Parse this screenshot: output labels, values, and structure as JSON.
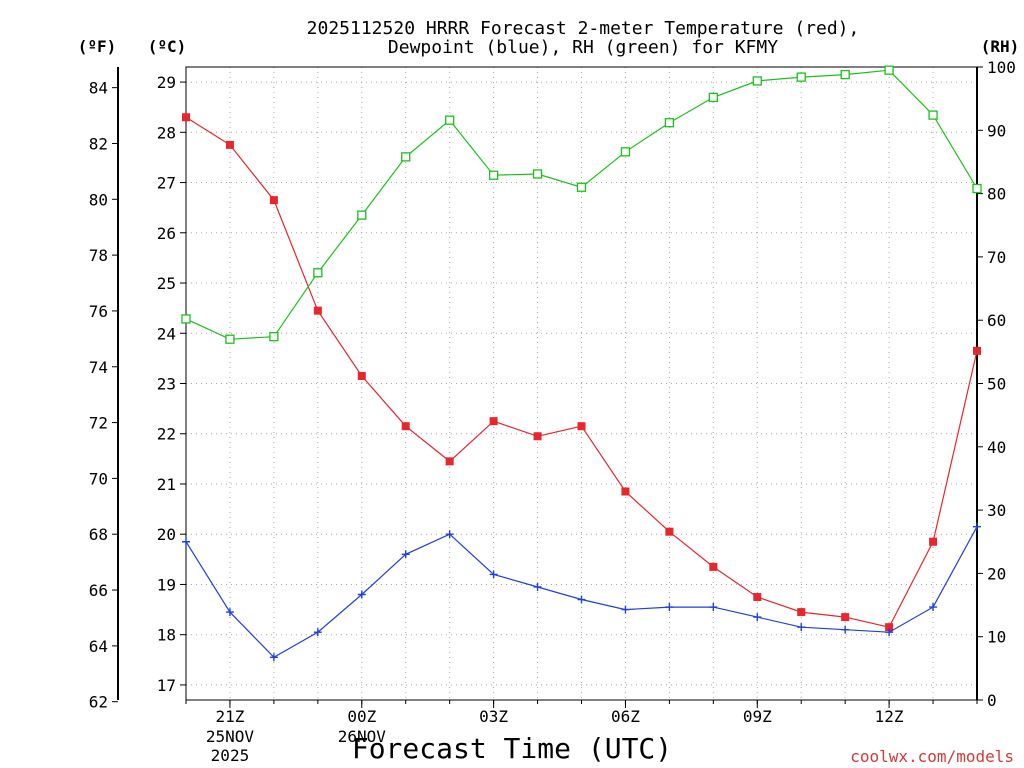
{
  "chart_data": {
    "type": "line",
    "title": [
      "2025112520 HRRR Forecast 2-meter Temperature (red),",
      "Dewpoint (blue), RH (green) for KFMY"
    ],
    "xlabel": "Forecast Time (UTC)",
    "credit": "coolwx.com/models",
    "units": {
      "left_outer": "(ºF)",
      "left_inner": "(ºC)",
      "right": "(RH)"
    },
    "x_hours": [
      20,
      21,
      22,
      23,
      24,
      25,
      26,
      27,
      28,
      29,
      30,
      31,
      32,
      33,
      34,
      35,
      36,
      37,
      38
    ],
    "x_ticks": [
      {
        "hour": 21,
        "label": "21Z"
      },
      {
        "hour": 24,
        "label": "00Z"
      },
      {
        "hour": 27,
        "label": "03Z"
      },
      {
        "hour": 30,
        "label": "06Z"
      },
      {
        "hour": 33,
        "label": "09Z"
      },
      {
        "hour": 36,
        "label": "12Z"
      }
    ],
    "date_labels": [
      {
        "hour": 21,
        "lines": [
          "25NOV",
          "2025"
        ]
      },
      {
        "hour": 24,
        "lines": [
          "26NOV"
        ]
      }
    ],
    "celsius_axis": {
      "min": 16.7,
      "max": 29.3,
      "ticks": [
        17,
        18,
        19,
        20,
        21,
        22,
        23,
        24,
        25,
        26,
        27,
        28,
        29
      ]
    },
    "fahrenheit_ticks": [
      62,
      64,
      66,
      68,
      70,
      72,
      74,
      76,
      78,
      80,
      82,
      84
    ],
    "rh_axis": {
      "min": 0,
      "max": 100,
      "ticks": [
        0,
        10,
        20,
        30,
        40,
        50,
        60,
        70,
        80,
        90,
        100
      ]
    },
    "series": [
      {
        "name": "Temperature",
        "color": "#e8262b",
        "marker": "filled-square",
        "axis": "C",
        "values": [
          28.3,
          27.75,
          26.65,
          24.45,
          23.15,
          22.15,
          21.45,
          22.25,
          21.95,
          22.15,
          20.85,
          20.05,
          19.35,
          18.75,
          18.45,
          18.35,
          18.15,
          19.85,
          23.65
        ]
      },
      {
        "name": "Dewpoint",
        "color": "#1f3fe0",
        "marker": "plus",
        "axis": "C",
        "values": [
          19.85,
          18.45,
          17.55,
          18.05,
          18.8,
          19.6,
          20.0,
          19.2,
          18.95,
          18.7,
          18.5,
          18.55,
          18.55,
          18.35,
          18.15,
          18.1,
          18.05,
          18.55,
          20.15
        ]
      },
      {
        "name": "RH",
        "color": "#19c219",
        "marker": "open-square",
        "axis": "RH",
        "values": [
          60.2,
          57.0,
          57.4,
          67.5,
          76.6,
          85.8,
          91.6,
          82.9,
          83.1,
          81.0,
          86.6,
          91.2,
          95.2,
          97.8,
          98.4,
          98.8,
          99.5,
          92.4,
          80.8
        ]
      }
    ]
  }
}
